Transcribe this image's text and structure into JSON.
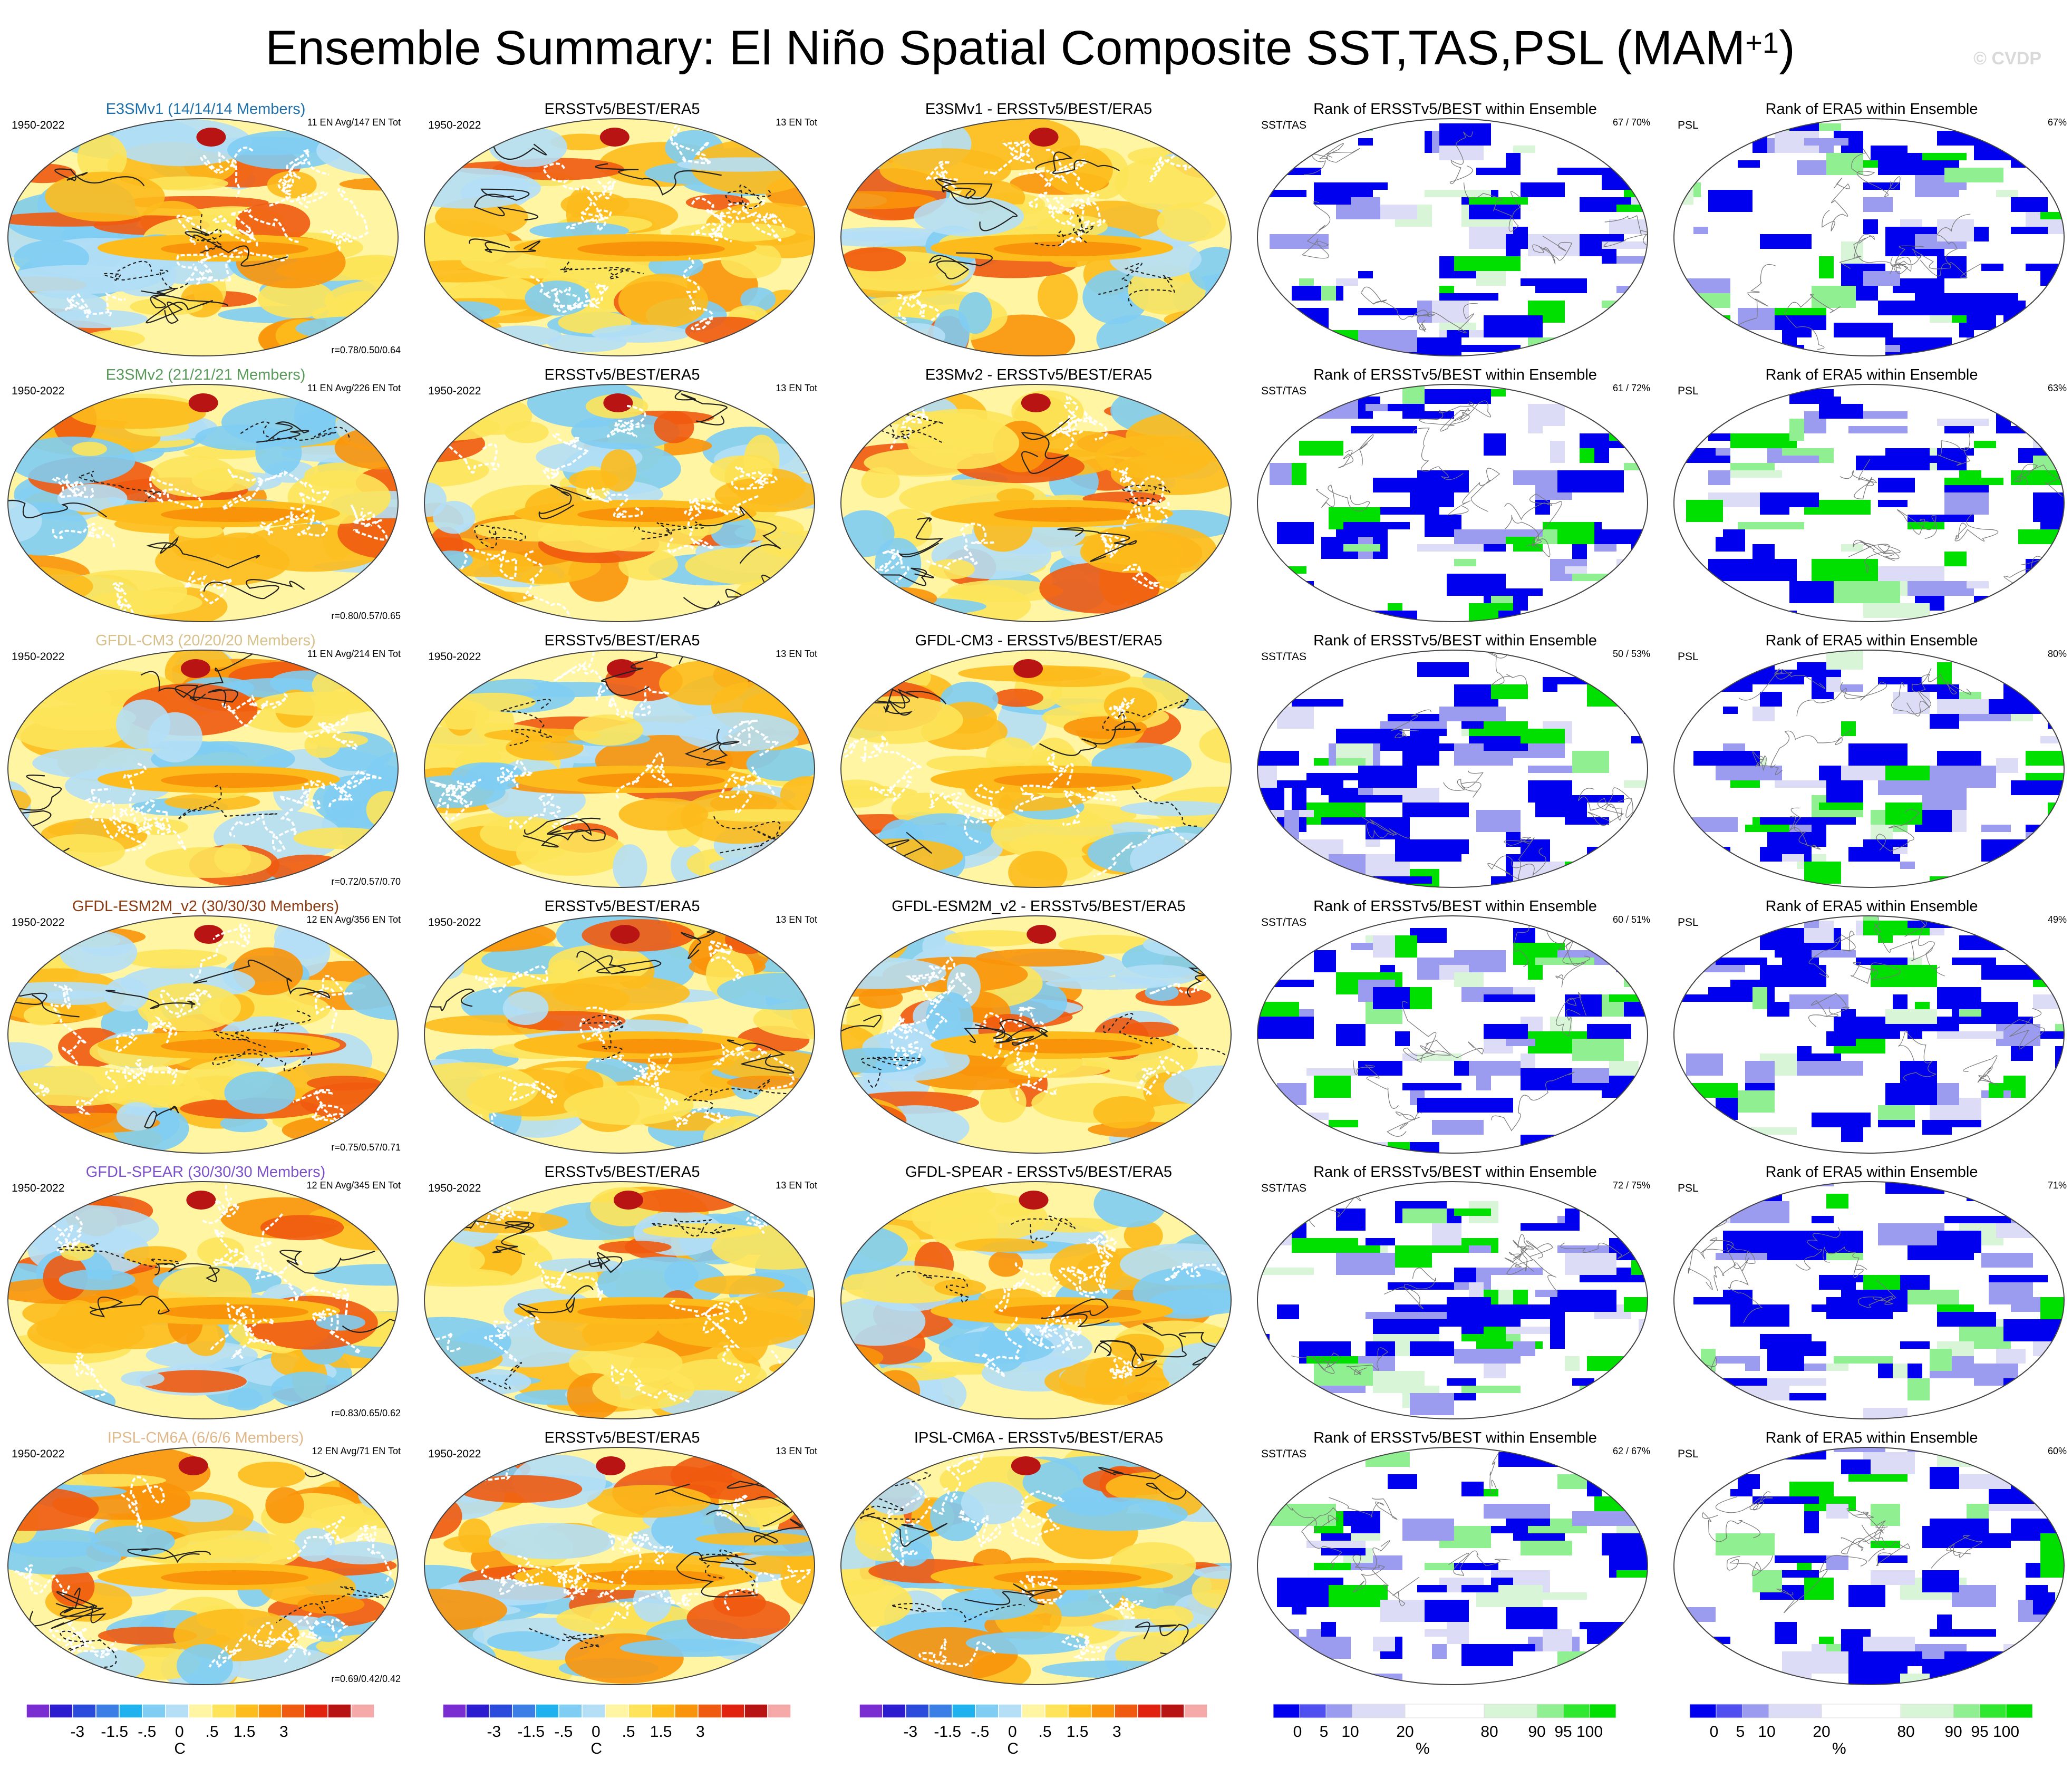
{
  "title_main": "Ensemble Summary: El Niño Spatial Composite SST,TAS,PSL (MAM",
  "title_sup": "+1",
  "title_close": ")",
  "watermark": "© CVDP",
  "colors": {
    "diverging": [
      "#7a2ed1",
      "#2b1ccf",
      "#2a4bdc",
      "#3a7ee6",
      "#1fb2ef",
      "#7fcdf3",
      "#b4dff6",
      "#fff5a2",
      "#fde45a",
      "#fdbb1c",
      "#f9930a",
      "#f05a10",
      "#e0220f",
      "#b81414",
      "#f6a9a9"
    ],
    "rank": [
      "#0000ee",
      "#5050f0",
      "#9b9bf0",
      "#dcdcf7",
      "#ffffff",
      "#d8f5d8",
      "#90ef90",
      "#30e830",
      "#00e000"
    ],
    "land_outline": "#ffffff",
    "contour": "#222222"
  },
  "rows": [
    {
      "model_title": "E3SMv1 (14/14/14 Members)",
      "model_color": "#1f6fa8",
      "ens_right": "11 EN Avg/147 EN Tot",
      "ens_r": "r=0.78/0.50/0.64",
      "diff_title": "E3SMv1 - ERSSTv5/BEST/ERA5",
      "rank_sst_pct": "67 /  70%",
      "rank_psl_pct": "67%"
    },
    {
      "model_title": "E3SMv2 (21/21/21 Members)",
      "model_color": "#5a9a5a",
      "ens_right": "11 EN Avg/226 EN Tot",
      "ens_r": "r=0.80/0.57/0.65",
      "diff_title": "E3SMv2 - ERSSTv5/BEST/ERA5",
      "rank_sst_pct": "61 /  72%",
      "rank_psl_pct": "63%"
    },
    {
      "model_title": "GFDL-CM3 (20/20/20 Members)",
      "model_color": "#d8c08a",
      "ens_right": "11 EN Avg/214 EN Tot",
      "ens_r": "r=0.72/0.57/0.70",
      "diff_title": "GFDL-CM3 - ERSSTv5/BEST/ERA5",
      "rank_sst_pct": "50 /  53%",
      "rank_psl_pct": "80%"
    },
    {
      "model_title": "GFDL-ESM2M_v2 (30/30/30 Members)",
      "model_color": "#8a3b12",
      "ens_right": "12 EN Avg/356 EN Tot",
      "ens_r": "r=0.75/0.57/0.71",
      "diff_title": "GFDL-ESM2M_v2 - ERSSTv5/BEST/ERA5",
      "rank_sst_pct": "60 /  51%",
      "rank_psl_pct": "49%"
    },
    {
      "model_title": "GFDL-SPEAR (30/30/30 Members)",
      "model_color": "#7b50c8",
      "ens_right": "12 EN Avg/345 EN Tot",
      "ens_r": "r=0.83/0.65/0.62",
      "diff_title": "GFDL-SPEAR - ERSSTv5/BEST/ERA5",
      "rank_sst_pct": "72 /  75%",
      "rank_psl_pct": "71%"
    },
    {
      "model_title": "IPSL-CM6A (6/6/6 Members)",
      "model_color": "#e0b88a",
      "ens_right": "12 EN Avg/71 EN Tot",
      "ens_r": "r=0.69/0.42/0.42",
      "diff_title": "IPSL-CM6A - ERSSTv5/BEST/ERA5",
      "rank_sst_pct": "62 /  67%",
      "rank_psl_pct": "60%"
    }
  ],
  "common": {
    "years": "1950-2022",
    "obs_title": "ERSSTv5/BEST/ERA5",
    "obs_right": "13 EN Tot",
    "rank_sst_title": "Rank of ERSSTv5/BEST within Ensemble",
    "rank_sst_left": "SST/TAS",
    "rank_psl_title": "Rank of ERA5 within Ensemble",
    "rank_psl_left": "PSL"
  },
  "colorbars": {
    "diverging_labels": [
      "-3",
      "-1.5",
      "-.5",
      "0",
      ".5",
      "1.5",
      "3"
    ],
    "diverging_unit": "C",
    "rank_labels": [
      "0",
      "5",
      "10",
      "20",
      "80",
      "90",
      "95",
      "100"
    ],
    "rank_unit": "%"
  }
}
